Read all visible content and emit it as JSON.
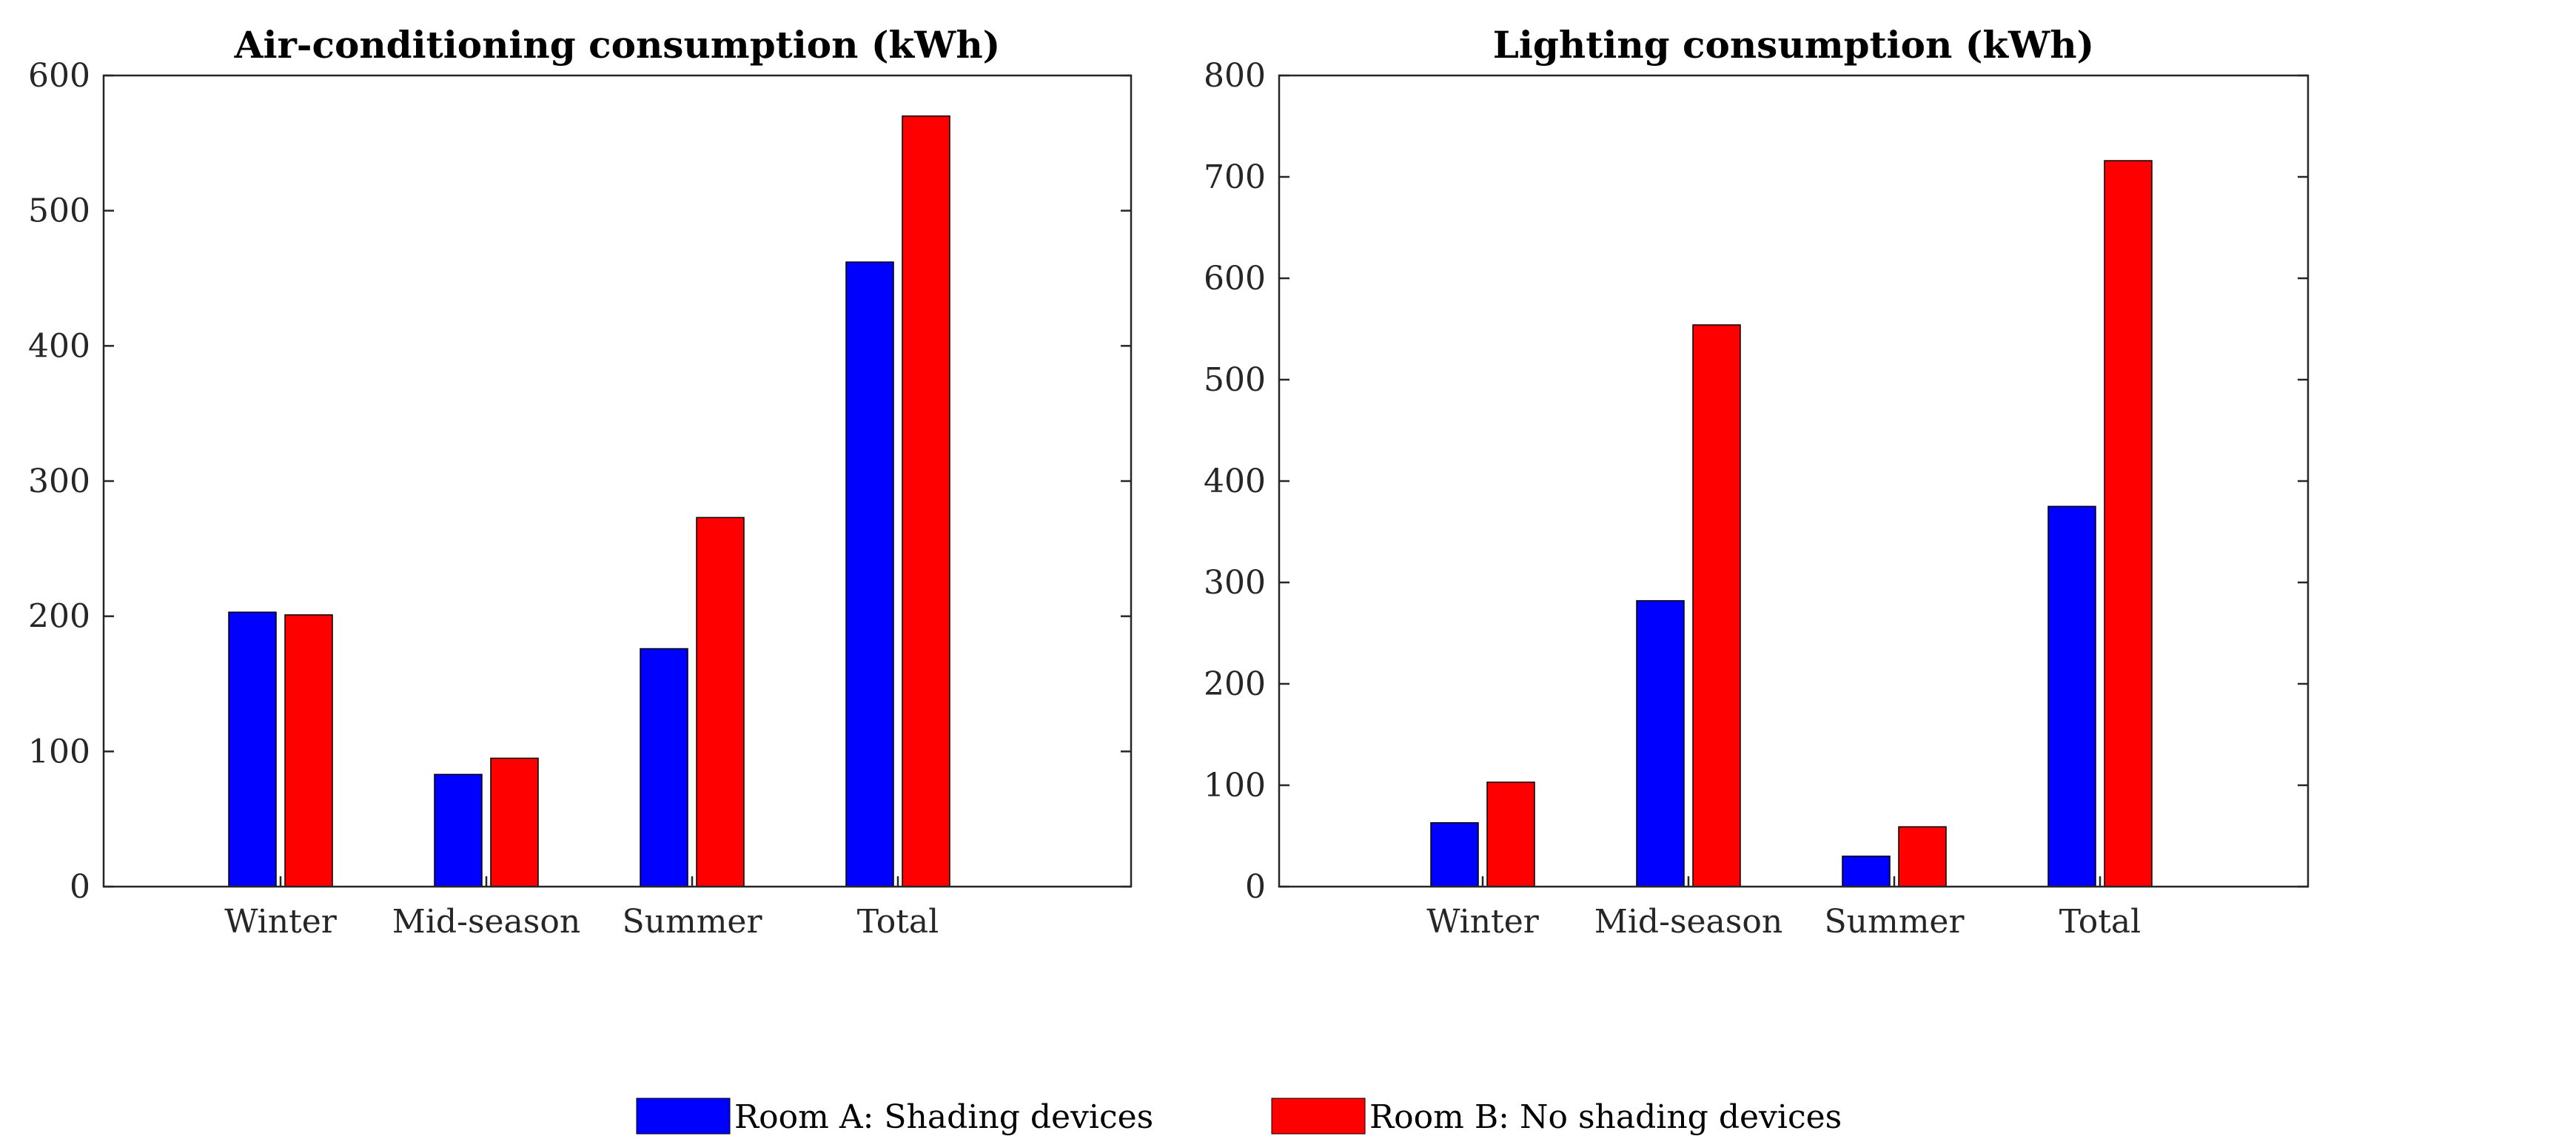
{
  "chart_data": [
    {
      "type": "bar",
      "title": "Air-conditioning consumption (kWh)",
      "categories": [
        "Winter",
        "Mid-season",
        "Summer",
        "Total"
      ],
      "series": [
        {
          "name": "Room A: Shading devices",
          "values": [
            203,
            83,
            176,
            462
          ]
        },
        {
          "name": "Room B: No shading devices",
          "values": [
            201,
            95,
            273,
            570
          ]
        }
      ],
      "ylim": [
        0,
        600
      ],
      "yticks": [
        0,
        100,
        200,
        300,
        400,
        500,
        600
      ],
      "xlabel": "",
      "ylabel": "",
      "grid": false
    },
    {
      "type": "bar",
      "title": "Lighting consumption (kWh)",
      "categories": [
        "Winter",
        "Mid-season",
        "Summer",
        "Total"
      ],
      "series": [
        {
          "name": "Room A: Shading devices",
          "values": [
            63,
            282,
            30,
            375
          ]
        },
        {
          "name": "Room B: No shading devices",
          "values": [
            103,
            554,
            59,
            716
          ]
        }
      ],
      "ylim": [
        0,
        800
      ],
      "yticks": [
        0,
        100,
        200,
        300,
        400,
        500,
        600,
        700,
        800
      ],
      "xlabel": "",
      "ylabel": "",
      "grid": false
    }
  ],
  "legend": {
    "position": "bottom",
    "items": [
      {
        "label": "Room A: Shading devices",
        "color": "#0000ff"
      },
      {
        "label": "Room B: No shading devices",
        "color": "#ff0000"
      }
    ]
  },
  "colors": {
    "series_a": "#0000ff",
    "series_b": "#ff0000",
    "axis": "#262626"
  }
}
